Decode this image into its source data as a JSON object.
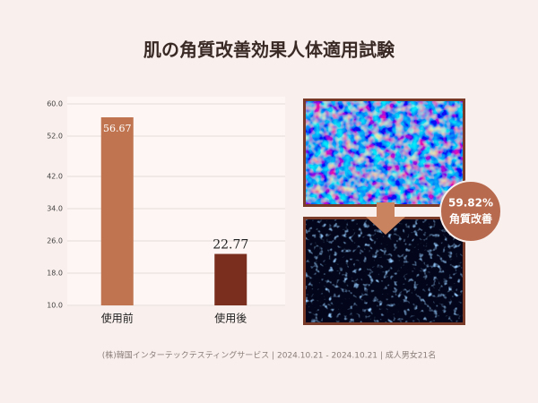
{
  "chart_data": {
    "type": "bar",
    "title": "肌の角質改善効果人体適用試験",
    "categories": [
      "使用前",
      "使用後"
    ],
    "values": [
      56.67,
      22.77
    ],
    "colors": [
      "#c07550",
      "#7a2e1e"
    ],
    "ylim": [
      10,
      60
    ],
    "yticks": [
      {
        "value": 10,
        "label": "10.0"
      },
      {
        "value": 18,
        "label": "18.0"
      },
      {
        "value": 26,
        "label": "26.0"
      },
      {
        "value": 34,
        "label": "34.0"
      },
      {
        "value": 42,
        "label": "42.0"
      },
      {
        "value": 52,
        "label": "52.0"
      },
      {
        "value": 60,
        "label": "60.0"
      }
    ],
    "grid": true,
    "annotation": {
      "value": "59.82%",
      "caption": "角質改善"
    },
    "footnote": "(株)韓国インターテックテスティングサービス | 2024.10.21 - 2024.10.21 | 成人男女21名"
  }
}
